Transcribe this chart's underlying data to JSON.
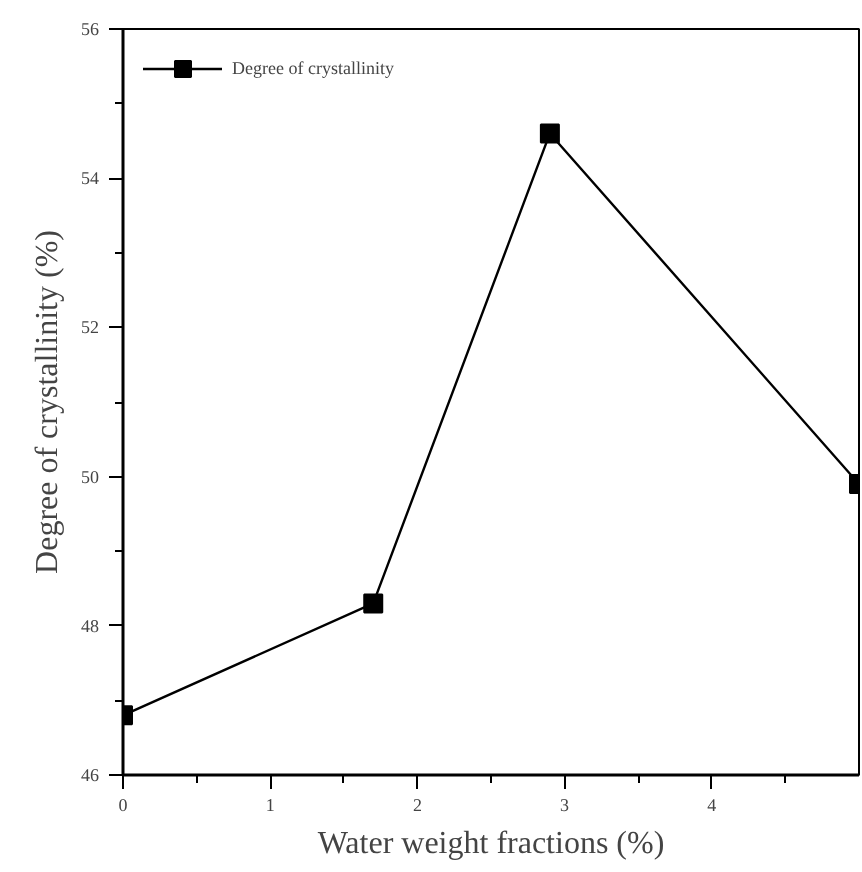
{
  "chart_data": {
    "type": "line",
    "xlabel": "Water weight fractions (%)",
    "ylabel": "Degree of crystallinity (%)",
    "x": [
      0,
      1.7,
      2.9,
      5
    ],
    "series": [
      {
        "name": "Degree of crystallinity",
        "color": "#000000",
        "values": [
          46.8,
          48.3,
          54.6,
          49.9
        ]
      }
    ],
    "xlim": [
      0,
      5
    ],
    "ylim": [
      46,
      56
    ],
    "xticks": [
      0,
      1,
      2,
      3,
      4
    ],
    "yticks": [
      46,
      48,
      50,
      52,
      54,
      56
    ],
    "marker": "square",
    "line_style": "solid",
    "grid": false,
    "legend": "top left"
  }
}
